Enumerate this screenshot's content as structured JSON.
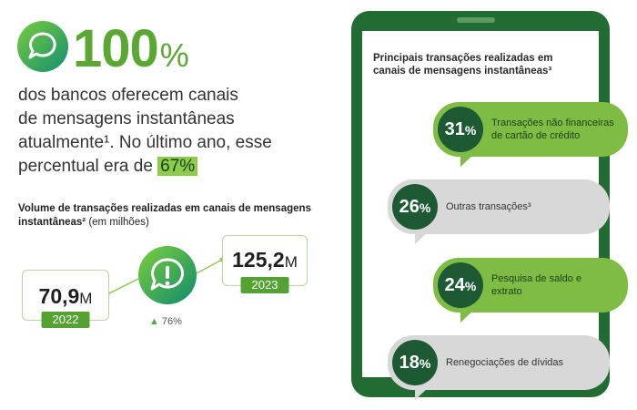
{
  "headline": {
    "value": "100",
    "percent_sign": "%",
    "line1": "dos bancos oferecem canais",
    "line2": "de mensagens instantâneas",
    "line3": "atualmente¹. No último ano, esse",
    "line4_prefix": "percentual era de ",
    "line4_highlight": "67%",
    "icon": "chat-bubble-icon"
  },
  "volume": {
    "title": "Volume de transações realizadas em canais de mensagens instantâneas²",
    "unit": " (em milhões)",
    "v2022": {
      "number": "70,9",
      "unit": "M",
      "year": "2022"
    },
    "v2023": {
      "number": "125,2",
      "unit": "M",
      "year": "2023"
    },
    "growth": "76%",
    "growth_icon": "up-triangle-icon",
    "center_icon": "alert-exclamation-icon"
  },
  "phone": {
    "title": "Principais transações realizadas em canais de mensagens instantâneas³",
    "items": [
      {
        "pct": "31",
        "sign": "%",
        "label": "Transações não financeiras de cartão de crédito"
      },
      {
        "pct": "26",
        "sign": "%",
        "label": "Outras transações³"
      },
      {
        "pct": "24",
        "sign": "%",
        "label": "Pesquisa de saldo e extrato"
      },
      {
        "pct": "18",
        "sign": "%",
        "label": "Renegociações de dívidas"
      }
    ]
  },
  "colors": {
    "brand_green": "#5aa832",
    "dark_green": "#226b32",
    "bubble_green": "#7fbc44",
    "bubble_gray": "#d8d8d8",
    "circle_dark": "#1d5a34"
  }
}
